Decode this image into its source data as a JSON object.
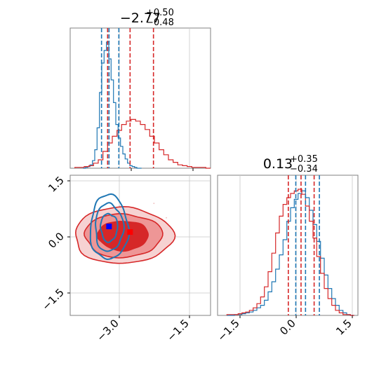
{
  "chart_data": [
    {
      "type": "histogram",
      "panel": "top-left marginal",
      "parameter": "x",
      "title": {
        "median": "−2.77",
        "plus": "+0.50",
        "minus": "−0.48"
      },
      "x_range": [
        -4.05,
        -1.05
      ],
      "series": [
        {
          "color": "#1f77b4",
          "quantile_lines": [
            -3.38,
            -3.22,
            -3.01
          ],
          "bins_x": [
            -3.75,
            -3.7,
            -3.65,
            -3.6,
            -3.55,
            -3.5,
            -3.45,
            -3.4,
            -3.35,
            -3.3,
            -3.25,
            -3.2,
            -3.15,
            -3.1,
            -3.05,
            -3.0,
            -2.95,
            -2.9,
            -2.85,
            -2.8,
            -2.75,
            -2.7,
            -2.65,
            -2.6,
            -2.55
          ],
          "counts": [
            0,
            1,
            2,
            4,
            9,
            22,
            48,
            90,
            125,
            140,
            150,
            130,
            105,
            78,
            52,
            36,
            26,
            17,
            11,
            6,
            3,
            2,
            1,
            0,
            0
          ]
        },
        {
          "color": "#d62728",
          "quantile_lines": [
            -3.25,
            -2.77,
            -2.27
          ],
          "bins_x": [
            -3.9,
            -3.8,
            -3.7,
            -3.6,
            -3.5,
            -3.4,
            -3.3,
            -3.2,
            -3.1,
            -3.0,
            -2.9,
            -2.8,
            -2.7,
            -2.6,
            -2.5,
            -2.4,
            -2.3,
            -2.2,
            -2.1,
            -2.0,
            -1.9,
            -1.8,
            -1.7,
            -1.6,
            -1.5,
            -1.4,
            -1.3,
            -1.2,
            -1.1
          ],
          "counts": [
            1,
            1,
            2,
            3,
            6,
            10,
            20,
            30,
            38,
            45,
            52,
            56,
            58,
            56,
            52,
            46,
            38,
            30,
            22,
            16,
            10,
            7,
            4,
            3,
            2,
            1,
            1,
            1,
            0
          ]
        }
      ]
    },
    {
      "type": "contour",
      "panel": "bottom-left joint",
      "x_range": [
        -4.05,
        -1.05
      ],
      "y_range": [
        -2.1,
        1.65
      ],
      "x_ticks": [
        "−3.0",
        "−1.5"
      ],
      "y_ticks": [
        "1.5",
        "0.0",
        "−1.5"
      ],
      "truth_lines": {
        "x": -3.0,
        "y": 0.0
      },
      "series": [
        {
          "color": "#d62728",
          "fill": true,
          "center": [
            -2.77,
            0.13
          ],
          "marker": [
            -2.77,
            0.13
          ]
        },
        {
          "color": "#1f77b4",
          "fill": false,
          "center": [
            -3.22,
            0.25
          ],
          "marker": [
            -3.22,
            0.28
          ]
        }
      ]
    },
    {
      "type": "histogram",
      "panel": "bottom-right marginal",
      "parameter": "y",
      "title": {
        "median": "0.13",
        "plus": "+0.35",
        "minus": "−0.34"
      },
      "x_range": [
        -2.1,
        1.65
      ],
      "x_ticks": [
        "−1.5",
        "0.0",
        "1.5"
      ],
      "series": [
        {
          "color": "#1f77b4",
          "quantile_lines": [
            -0.01,
            0.25,
            0.62
          ],
          "bins_x": [
            -1.8,
            -1.7,
            -1.6,
            -1.5,
            -1.4,
            -1.3,
            -1.2,
            -1.1,
            -1.0,
            -0.9,
            -0.8,
            -0.7,
            -0.6,
            -0.5,
            -0.4,
            -0.3,
            -0.2,
            -0.1,
            0.0,
            0.1,
            0.2,
            0.3,
            0.4,
            0.5,
            0.6,
            0.7,
            0.8,
            0.9,
            1.0,
            1.1,
            1.2,
            1.3,
            1.4,
            1.5
          ],
          "counts": [
            0,
            0,
            1,
            1,
            2,
            3,
            4,
            6,
            9,
            12,
            18,
            28,
            40,
            55,
            72,
            90,
            112,
            128,
            138,
            145,
            148,
            140,
            125,
            108,
            88,
            68,
            48,
            32,
            20,
            12,
            6,
            3,
            1,
            0
          ]
        },
        {
          "color": "#d62728",
          "quantile_lines": [
            -0.21,
            0.13,
            0.48
          ],
          "bins_x": [
            -1.8,
            -1.7,
            -1.6,
            -1.5,
            -1.4,
            -1.3,
            -1.2,
            -1.1,
            -1.0,
            -0.9,
            -0.8,
            -0.7,
            -0.6,
            -0.5,
            -0.4,
            -0.3,
            -0.2,
            -0.1,
            0.0,
            0.1,
            0.2,
            0.3,
            0.4,
            0.5,
            0.6,
            0.7,
            0.8,
            0.9,
            1.0,
            1.1,
            1.2,
            1.3,
            1.4,
            1.5
          ],
          "counts": [
            1,
            1,
            1,
            2,
            3,
            4,
            6,
            9,
            14,
            22,
            34,
            52,
            74,
            98,
            118,
            132,
            140,
            145,
            148,
            150,
            144,
            130,
            112,
            92,
            70,
            50,
            32,
            20,
            12,
            6,
            3,
            1,
            1,
            0
          ]
        }
      ]
    }
  ]
}
